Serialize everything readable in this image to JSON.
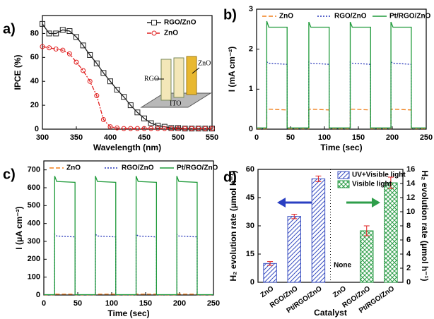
{
  "chart_data": [
    {
      "type": "line",
      "panel_label": "a)",
      "xlabel": "Wavelength (nm)",
      "ylabel": "IPCE (%)",
      "x": [
        300,
        310,
        320,
        330,
        340,
        350,
        360,
        370,
        380,
        390,
        400,
        410,
        420,
        430,
        440,
        450,
        460,
        470,
        480,
        490,
        500,
        510,
        520,
        530,
        540,
        550
      ],
      "xlim": [
        300,
        550
      ],
      "xticks": [
        300,
        350,
        400,
        450,
        500,
        550
      ],
      "ylim": [
        0,
        95
      ],
      "yticks": [
        0,
        20,
        40,
        60,
        80
      ],
      "legend": "upper right",
      "series": [
        {
          "name": "RGO/ZnO",
          "color": "#222222",
          "line_style": "solid",
          "marker": "square",
          "values": [
            88,
            80,
            80,
            83,
            82,
            77,
            70,
            62,
            55,
            47,
            40,
            33,
            27,
            20,
            14,
            9,
            5,
            3,
            2,
            1,
            1,
            0.5,
            0.5,
            0.5,
            0.5,
            0.5
          ]
        },
        {
          "name": "ZnO",
          "color": "#e02020",
          "line_style": "dashdot",
          "marker": "circle",
          "values": [
            69,
            68,
            67,
            66,
            63,
            56,
            49,
            40,
            28,
            8,
            2,
            1,
            0.5,
            0.5,
            0.5,
            0.5,
            0.5,
            0.5,
            0.5,
            0.5,
            0.5,
            0.5,
            0.5,
            0.5,
            0.5,
            0.5
          ]
        }
      ],
      "annotations": [
        "RGO",
        "ZnO",
        "ITO"
      ]
    },
    {
      "type": "line",
      "panel_label": "b)",
      "xlabel": "Time (sec)",
      "ylabel": "I (mA cm⁻²)",
      "x": [
        0,
        15,
        15,
        18,
        45,
        45,
        77,
        77,
        80,
        107,
        107,
        138,
        138,
        141,
        168,
        168,
        198,
        198,
        201,
        228,
        228,
        250
      ],
      "xlim": [
        0,
        250
      ],
      "xticks": [
        0,
        50,
        100,
        150,
        200,
        250
      ],
      "ylim": [
        0,
        3
      ],
      "yticks": [
        0,
        1,
        2,
        3
      ],
      "legend": "upper center",
      "series": [
        {
          "name": "ZnO",
          "color": "#f07f1a",
          "line_style": "dashed",
          "values": [
            0.01,
            0.01,
            0.5,
            0.5,
            0.48,
            0.01,
            0.01,
            0.5,
            0.5,
            0.48,
            0.01,
            0.01,
            0.5,
            0.5,
            0.48,
            0.01,
            0.01,
            0.5,
            0.5,
            0.48,
            0.01,
            0.01
          ]
        },
        {
          "name": "RGO/ZnO",
          "color": "#2333b8",
          "line_style": "dotted",
          "values": [
            0.02,
            0.02,
            1.68,
            1.65,
            1.62,
            0.02,
            0.02,
            1.68,
            1.65,
            1.62,
            0.02,
            0.02,
            1.68,
            1.65,
            1.62,
            0.02,
            0.02,
            1.68,
            1.65,
            1.62,
            0.02,
            0.02
          ]
        },
        {
          "name": "Pt/RGO/ZnO",
          "color": "#1f9a3a",
          "line_style": "solid",
          "values": [
            0.03,
            0.03,
            2.7,
            2.55,
            2.55,
            0.03,
            0.03,
            2.68,
            2.55,
            2.55,
            0.03,
            0.03,
            2.68,
            2.55,
            2.55,
            0.03,
            0.03,
            2.68,
            2.55,
            2.55,
            0.03,
            0.03
          ]
        }
      ]
    },
    {
      "type": "line",
      "panel_label": "c)",
      "xlabel": "Time (sec)",
      "ylabel": "I (μA cm⁻²)",
      "x": [
        0,
        16,
        16,
        19,
        46,
        46,
        76,
        76,
        79,
        106,
        106,
        136,
        136,
        139,
        166,
        166,
        196,
        196,
        199,
        226,
        226,
        250
      ],
      "xlim": [
        0,
        250
      ],
      "xticks": [
        0,
        50,
        100,
        150,
        200,
        250
      ],
      "ylim": [
        0,
        750
      ],
      "yticks": [
        0,
        100,
        200,
        300,
        400,
        500,
        600,
        700
      ],
      "legend": "upper center",
      "series": [
        {
          "name": "ZnO",
          "color": "#f07f1a",
          "line_style": "dashed",
          "values": [
            0,
            0,
            6,
            5,
            5,
            0,
            0,
            6,
            5,
            5,
            0,
            0,
            6,
            5,
            5,
            0,
            0,
            6,
            5,
            5,
            0,
            0
          ]
        },
        {
          "name": "RGO/ZnO",
          "color": "#2333b8",
          "line_style": "dotted",
          "values": [
            1,
            1,
            340,
            330,
            325,
            1,
            1,
            340,
            330,
            325,
            1,
            1,
            340,
            330,
            325,
            1,
            1,
            340,
            330,
            325,
            1,
            1
          ]
        },
        {
          "name": "Pt/RGO/ZnO",
          "color": "#1f9a3a",
          "line_style": "solid",
          "values": [
            2,
            2,
            665,
            635,
            630,
            2,
            2,
            665,
            635,
            630,
            2,
            2,
            665,
            635,
            630,
            2,
            2,
            665,
            635,
            630,
            2,
            2
          ]
        }
      ]
    },
    {
      "type": "bar",
      "panel_label": "d)",
      "xlabel": "Catalyst",
      "ylabel": "H₂ evolution rate (μmol h⁻¹)",
      "y2label": "H₂ evolution rate (μmol h⁻¹)",
      "categories": [
        "ZnO",
        "RGO/ZnO",
        "Pt/RGO/ZnO",
        "ZnO",
        "RGO/ZnO",
        "Pt/RGO/ZnO"
      ],
      "ylim": [
        0,
        60
      ],
      "yticks": [
        0,
        15,
        30,
        45,
        60
      ],
      "y2lim": [
        0,
        16
      ],
      "y2ticks": [
        0,
        2,
        4,
        6,
        8,
        10,
        12,
        14,
        16
      ],
      "legend": "upper right",
      "error_color": "#e02020",
      "series": [
        {
          "name": "UV+Visible light",
          "color": "#3a4fc2",
          "axis": "y",
          "hatch": "diagonal",
          "values": [
            10,
            35,
            55,
            null,
            null,
            null
          ],
          "errors": [
            1,
            1.2,
            1.5,
            null,
            null,
            null
          ]
        },
        {
          "name": "Visible light",
          "color": "#2e9e4a",
          "axis": "y2",
          "hatch": "cross",
          "values": [
            null,
            null,
            null,
            null,
            7.3,
            14.1
          ],
          "errors": [
            null,
            null,
            null,
            null,
            0.7,
            0.8
          ]
        }
      ],
      "annotations": [
        "None"
      ]
    }
  ]
}
